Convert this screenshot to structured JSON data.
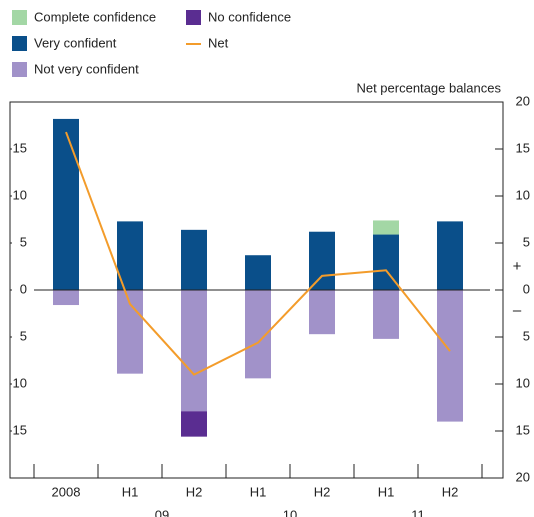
{
  "chart_data": {
    "type": "bar",
    "y_axis_label": "Net percentage balances",
    "categories": [
      "2008",
      "H1",
      "H2",
      "H1",
      "H2",
      "H1",
      "H2"
    ],
    "year_labels": [
      "09",
      "10",
      "11"
    ],
    "series": [
      {
        "name": "Complete confidence",
        "color": "#a3d7a5",
        "values": [
          null,
          null,
          null,
          null,
          null,
          1.5,
          null
        ]
      },
      {
        "name": "No confidence",
        "color": "#5a2d91",
        "values": [
          null,
          null,
          -2.7,
          null,
          null,
          null,
          null
        ]
      },
      {
        "name": "Very confident",
        "color": "#0a4f8a",
        "values": [
          18.2,
          7.3,
          6.4,
          3.7,
          6.2,
          5.9,
          7.3
        ]
      },
      {
        "name": "Net",
        "color": "#f39c2b",
        "type": "line",
        "values": [
          16.8,
          -1.5,
          -9.0,
          -5.6,
          1.5,
          2.1,
          -6.5
        ]
      },
      {
        "name": "Not very confident",
        "color": "#a192c9",
        "values": [
          -1.6,
          -8.9,
          -12.9,
          -9.4,
          -4.7,
          -5.2,
          -14.0
        ]
      }
    ],
    "ylim": [
      -20,
      20
    ],
    "yticks": [
      20,
      15,
      10,
      5,
      0,
      {
        "value": -5,
        "label": "5"
      },
      {
        "value": -10,
        "label": "10"
      },
      {
        "value": -15,
        "label": "15"
      },
      {
        "value": -20,
        "label": "20"
      }
    ],
    "y2lim": [
      -20,
      20
    ],
    "y2ticks": [
      15,
      10,
      5,
      0,
      {
        "value": -5,
        "label": "5"
      },
      {
        "value": -10,
        "label": "10"
      },
      {
        "value": -15,
        "label": "15"
      }
    ],
    "positive_sign": "+",
    "negative_sign": "–"
  }
}
